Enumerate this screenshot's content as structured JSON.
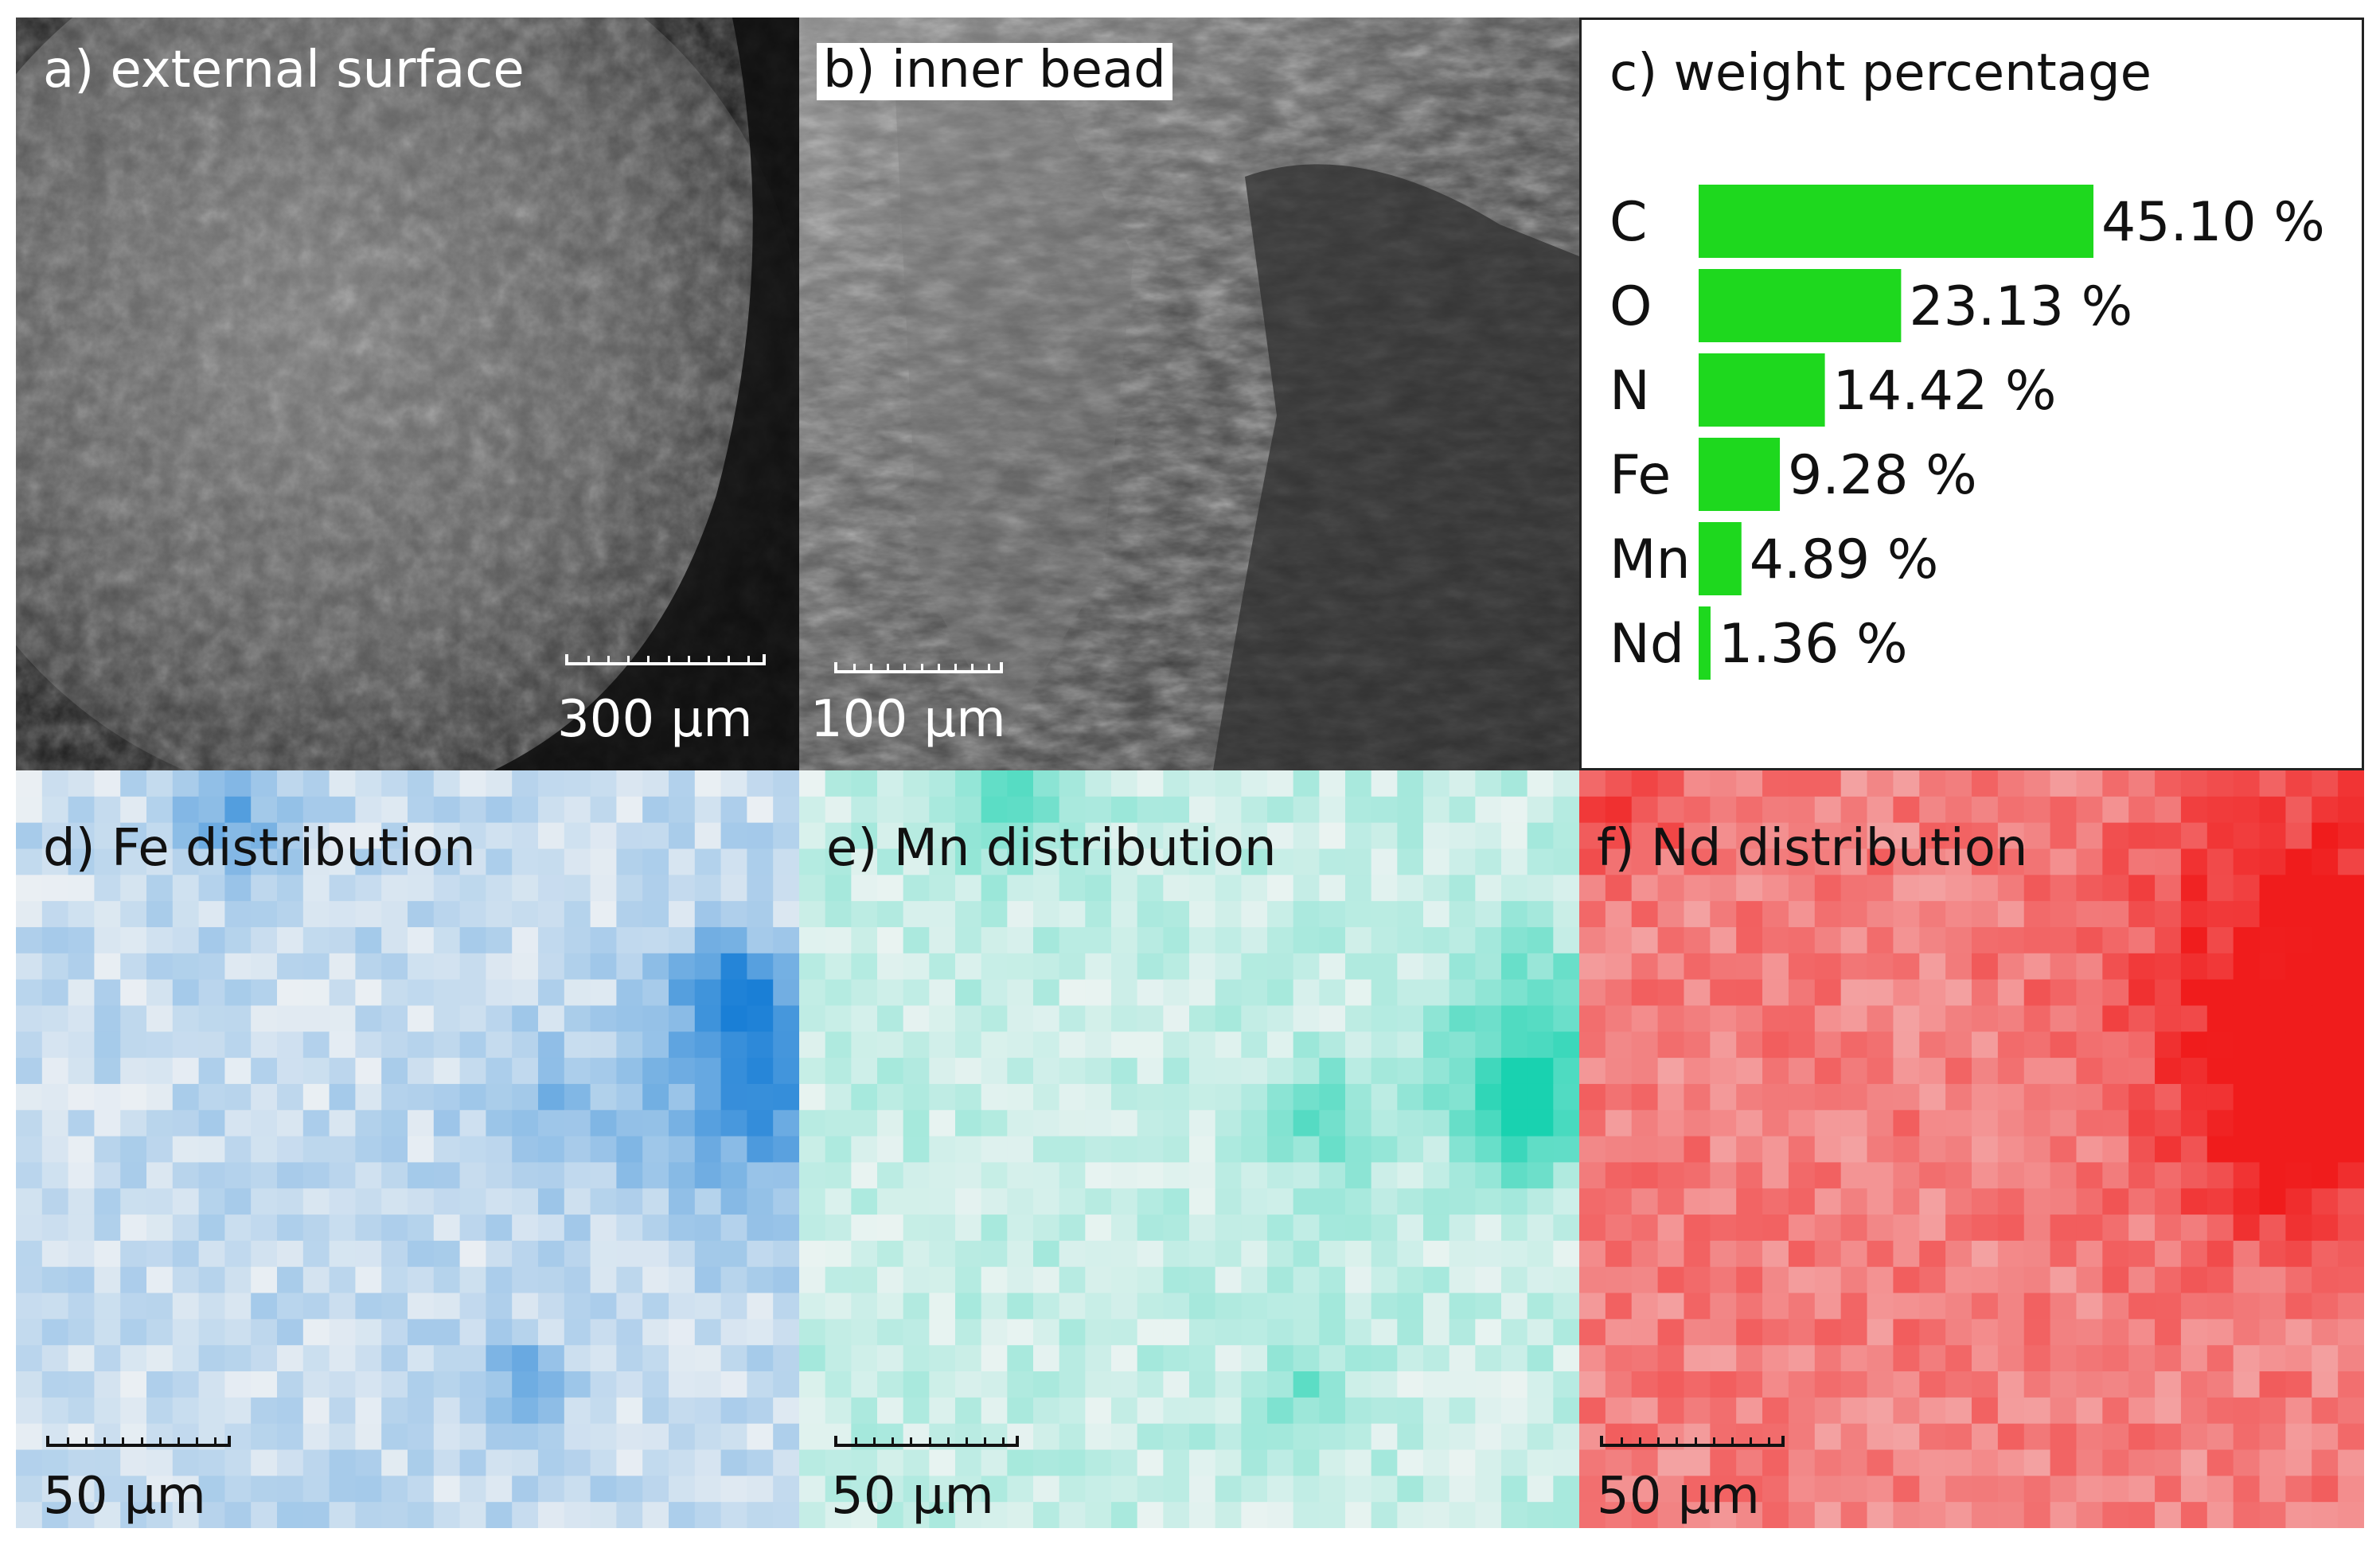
{
  "panels": {
    "a": {
      "label": "a) external surface",
      "scale": "300 µm"
    },
    "b": {
      "label": "b) inner bead",
      "scale": "100 µm"
    },
    "c": {
      "label": "c) weight percentage"
    },
    "d": {
      "label": "d) Fe distribution",
      "scale": "50 µm"
    },
    "e": {
      "label": "e) Mn distribution",
      "scale": "50 µm"
    },
    "f": {
      "label": "f) Nd distribution",
      "scale": "50 µm"
    }
  },
  "colors": {
    "bar": "#1ed81e",
    "fe_hi": "#1a7fd6",
    "mn_hi": "#19d2b0",
    "nd_hi": "#f01c1c"
  },
  "chart_data": {
    "type": "bar",
    "orientation": "horizontal",
    "title": "c) weight percentage",
    "categories": [
      "C",
      "O",
      "N",
      "Fe",
      "Mn",
      "Nd"
    ],
    "values": [
      45.1,
      23.13,
      14.42,
      9.28,
      4.89,
      1.36
    ],
    "value_labels": [
      "45.10 %",
      "23.13 %",
      "14.42 %",
      "9.28 %",
      "4.89 %",
      "1.36 %"
    ],
    "unit": "%",
    "xlim": [
      0,
      45.1
    ]
  }
}
